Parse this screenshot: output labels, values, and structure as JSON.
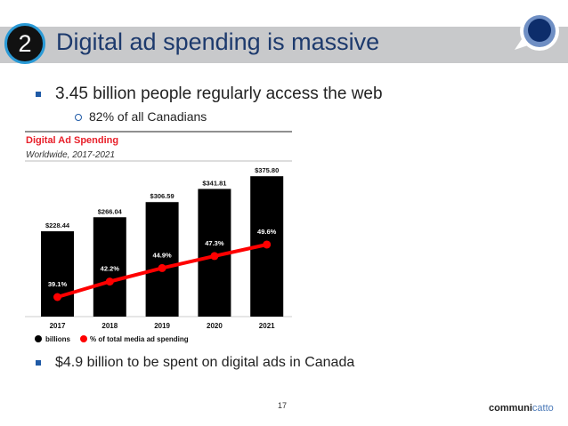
{
  "slide": {
    "number_badge": "2",
    "title": "Digital ad spending is massive",
    "bullets": [
      {
        "text": "3.45 billion people regularly access the web"
      },
      {
        "text": "82% of all Canadians"
      },
      {
        "text": "$4.9 billion to be spent on digital ads in Canada"
      }
    ],
    "page_number": "17",
    "logo": {
      "part1": "communi",
      "part2": "catto"
    },
    "colors": {
      "title": "#1d3a6d",
      "bullet": "#1f5aa6",
      "titlebar": "#c8c9cb"
    }
  },
  "chart_data": {
    "type": "bar",
    "title": "Digital Ad Spending",
    "subtitle": "Worldwide, 2017-2021",
    "categories": [
      "2017",
      "2018",
      "2019",
      "2020",
      "2021"
    ],
    "series": [
      {
        "name": "billions",
        "type": "bar",
        "values": [
          228.44,
          266.04,
          306.59,
          341.81,
          375.8
        ],
        "labels": [
          "$228.44",
          "$266.04",
          "$306.59",
          "$341.81",
          "$375.80"
        ],
        "color": "#000000"
      },
      {
        "name": "% of total media ad spending",
        "type": "line",
        "values": [
          39.1,
          42.2,
          44.9,
          47.3,
          49.6
        ],
        "labels": [
          "39.1%",
          "42.2%",
          "44.9%",
          "47.3%",
          "49.6%"
        ],
        "color": "#ff0000"
      }
    ],
    "legend": "bottom-left",
    "grid": false
  }
}
